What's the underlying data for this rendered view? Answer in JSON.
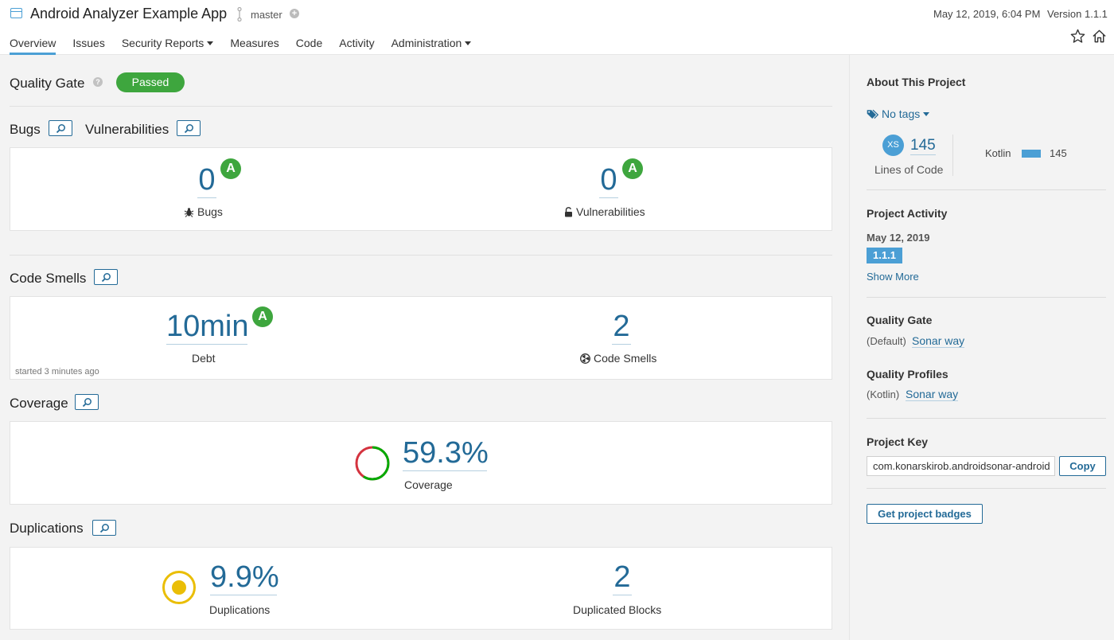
{
  "header": {
    "title": "Android Analyzer Example App",
    "branch": "master",
    "date": "May 12, 2019, 6:04 PM",
    "version": "Version 1.1.1",
    "icons": [
      "project-icon",
      "branch-icon",
      "add-icon",
      "star-icon",
      "home-icon"
    ]
  },
  "nav": {
    "overview": "Overview",
    "issues": "Issues",
    "security_reports": "Security Reports",
    "measures": "Measures",
    "code": "Code",
    "activity": "Activity",
    "administration": "Administration"
  },
  "quality_gate": {
    "title": "Quality Gate",
    "status": "Passed",
    "status_color": "#3ea63e"
  },
  "bugs_vulns": {
    "bugs_title": "Bugs",
    "vulns_title": "Vulnerabilities",
    "bugs_value": "0",
    "bugs_rating": "A",
    "bugs_label": "Bugs",
    "vulns_value": "0",
    "vulns_rating": "A",
    "vulns_label": "Vulnerabilities"
  },
  "code_smells": {
    "title": "Code Smells",
    "debt_value": "10min",
    "debt_rating": "A",
    "debt_label": "Debt",
    "smells_value": "2",
    "smells_label": "Code Smells",
    "started": "started 3 minutes ago"
  },
  "coverage": {
    "title": "Coverage",
    "value": "59.3%",
    "label": "Coverage",
    "fraction": 0.593
  },
  "duplications": {
    "title": "Duplications",
    "value": "9.9%",
    "label": "Duplications",
    "blocks_value": "2",
    "blocks_label": "Duplicated Blocks"
  },
  "sidebar": {
    "about_title": "About This Project",
    "tags": "No tags",
    "loc_badge": "XS",
    "loc_value": "145",
    "loc_label": "Lines of Code",
    "language": "Kotlin",
    "language_value": "145",
    "activity_title": "Project Activity",
    "activity_date": "May 12, 2019",
    "activity_version": "1.1.1",
    "show_more": "Show More",
    "qg_title": "Quality Gate",
    "qg_default": "(Default)",
    "qg_link": "Sonar way",
    "qp_title": "Quality Profiles",
    "qp_lang": "(Kotlin)",
    "qp_link": "Sonar way",
    "key_title": "Project Key",
    "key_value": "com.konarskirob.androidsonar-android",
    "copy": "Copy",
    "badges": "Get project badges"
  }
}
